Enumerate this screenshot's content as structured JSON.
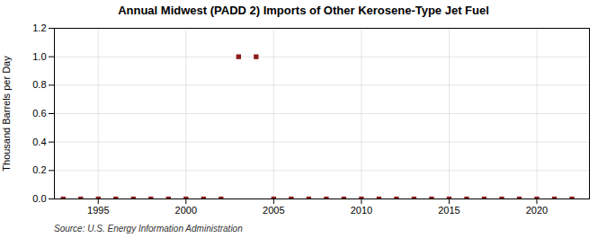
{
  "chart_data": {
    "type": "scatter",
    "title": "Annual Midwest (PADD 2) Imports of Other Kerosene-Type Jet Fuel",
    "y_label": "Thousand Barrels per Day",
    "source": "Source: U.S. Energy Information Administration",
    "x": [
      1993,
      1994,
      1995,
      1996,
      1997,
      1998,
      1999,
      2000,
      2001,
      2002,
      2003,
      2004,
      2005,
      2006,
      2007,
      2008,
      2009,
      2010,
      2011,
      2012,
      2013,
      2014,
      2015,
      2016,
      2017,
      2018,
      2019,
      2020,
      2021,
      2022
    ],
    "values": [
      0,
      0,
      0,
      0,
      0,
      0,
      0,
      0,
      0,
      0,
      1.0,
      1.0,
      0,
      0,
      0,
      0,
      0,
      0,
      0,
      0,
      0,
      0,
      0,
      0,
      0,
      0,
      0,
      0,
      0,
      0
    ],
    "color": "#8b1a1a",
    "marker": "square",
    "xlim": [
      1992.5,
      2023
    ],
    "ylim": [
      0.0,
      1.2
    ],
    "xticks": [
      1995,
      2000,
      2005,
      2010,
      2015,
      2020
    ],
    "yticks": [
      {
        "value": 0,
        "label": "0.0"
      },
      0.2,
      0.4,
      0.6,
      0.8,
      {
        "value": 1,
        "label": "1.0"
      },
      1.2
    ],
    "grid": true
  }
}
